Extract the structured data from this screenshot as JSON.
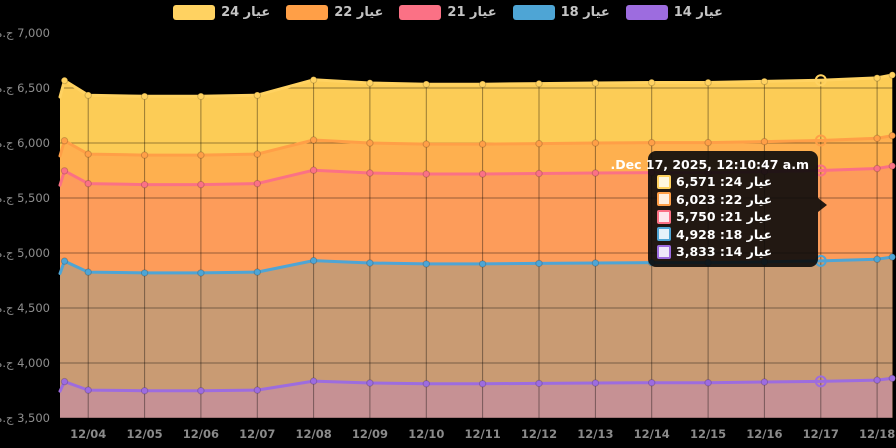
{
  "page": {
    "background_color": "#000000",
    "currency_unit": "ج.م"
  },
  "tooltip": {
    "header": "Dec 17, 2025, 12:10:47 a.m.",
    "rows": [
      {
        "series": "عيار 24",
        "value": "6,571",
        "color": "#FFD261",
        "tint": "#FFF6DF"
      },
      {
        "series": "عيار 22",
        "value": "6,023",
        "color": "#FF9F47",
        "tint": "#FFEFE0"
      },
      {
        "series": "عيار 21",
        "value": "5,750",
        "color": "#FB7185",
        "tint": "#FDE8EC"
      },
      {
        "series": "عيار 18",
        "value": "4,928",
        "color": "#4EA5D5",
        "tint": "#E5F2FA"
      },
      {
        "series": "عيار 14",
        "value": "3,833",
        "color": "#9D6CDF",
        "tint": "#EFE8FA"
      }
    ]
  },
  "chart_data": {
    "type": "area",
    "title": "",
    "legend_position": "top",
    "grid": true,
    "currency": "ج.م",
    "ylim": [
      3500,
      7000
    ],
    "y_tick_values": [
      7000,
      6500,
      6000,
      5500,
      5000,
      4500,
      4000,
      3500
    ],
    "y_tick_labels": [
      "7,000",
      "6,500",
      "6,000",
      "5,500",
      "5,000",
      "4,500",
      "4,000",
      "3,500"
    ],
    "x_categories": [
      "12/04",
      "12/05",
      "12/06",
      "12/07",
      "12/08",
      "12/09",
      "12/10",
      "12/11",
      "12/12",
      "12/13",
      "12/14",
      "12/15",
      "12/16",
      "12/17",
      "12/18"
    ],
    "hover_index": 13,
    "hover_date": "Dec 17, 2025, 12:10:47 a.m.",
    "lead_offsets": [
      -0.5,
      -0.42
    ],
    "trail_offset": 14.27,
    "series": [
      {
        "id": "k24",
        "name": "عيار 24",
        "karat": 24,
        "color": "#FFD261",
        "fill": "#FCCC56",
        "values": [
          6435,
          6425,
          6425,
          6435,
          6575,
          6545,
          6535,
          6535,
          6540,
          6545,
          6550,
          6550,
          6560,
          6571,
          6592
        ],
        "lead": [
          6418,
          6568
        ],
        "trail": 6618,
        "hover_value": 6571
      },
      {
        "id": "k22",
        "name": "عيار 22",
        "karat": 22,
        "color": "#FF9F47",
        "fill": "#FEB04F",
        "values": [
          5899,
          5890,
          5890,
          5899,
          6027,
          6000,
          5990,
          5990,
          5995,
          6000,
          6004,
          6004,
          6013,
          6023,
          6043
        ],
        "lead": [
          5883,
          6021
        ],
        "trail": 6067,
        "hover_value": 6023
      },
      {
        "id": "k21",
        "name": "عيار 21",
        "karat": 21,
        "color": "#FB7185",
        "fill": "#FD9C5A",
        "values": [
          5631,
          5622,
          5622,
          5631,
          5753,
          5727,
          5718,
          5718,
          5723,
          5727,
          5731,
          5731,
          5740,
          5750,
          5768
        ],
        "lead": [
          5616,
          5747
        ],
        "trail": 5791,
        "hover_value": 5750
      },
      {
        "id": "k18",
        "name": "عيار 18",
        "karat": 18,
        "color": "#4EA5D5",
        "fill": "#C99B73",
        "values": [
          4826,
          4819,
          4819,
          4826,
          4931,
          4909,
          4901,
          4901,
          4905,
          4909,
          4913,
          4913,
          4920,
          4928,
          4944
        ],
        "lead": [
          4814,
          4926
        ],
        "trail": 4964,
        "hover_value": 4928
      },
      {
        "id": "k14",
        "name": "عيار 14",
        "karat": 14,
        "color": "#9D6CDF",
        "fill": "#C69194",
        "values": [
          3754,
          3748,
          3748,
          3754,
          3835,
          3818,
          3812,
          3812,
          3815,
          3818,
          3821,
          3821,
          3827,
          3833,
          3845
        ],
        "lead": [
          3744,
          3831
        ],
        "trail": 3861,
        "hover_value": 3833
      }
    ]
  }
}
